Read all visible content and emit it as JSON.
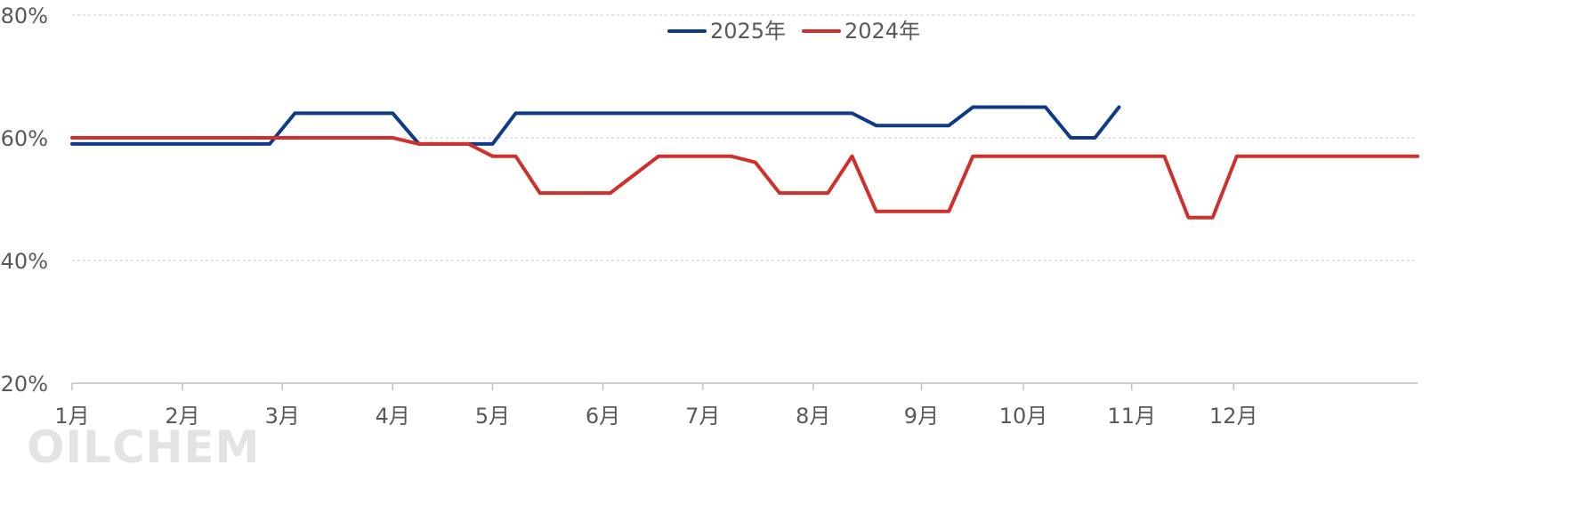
{
  "watermark": "OILCHEM",
  "chart_data": {
    "type": "line",
    "title": "",
    "xlabel": "",
    "ylabel": "",
    "ylim": [
      20,
      80
    ],
    "y_ticks": [
      "20%",
      "40%",
      "60%",
      "80%"
    ],
    "y_tick_values": [
      20,
      40,
      60,
      80
    ],
    "x_range": [
      1,
      13.8
    ],
    "months": [
      "1月",
      "2月",
      "3月",
      "4月",
      "5月",
      "6月",
      "7月",
      "8月",
      "9月",
      "10月",
      "11月",
      "12月"
    ],
    "grid": "horizontal dashed",
    "legend_position": "top-center",
    "series": [
      {
        "name": "2025年",
        "color": "#0e3a8a",
        "points": [
          [
            1.0,
            59
          ],
          [
            2.88,
            59
          ],
          [
            3.12,
            64
          ],
          [
            4.05,
            64
          ],
          [
            4.3,
            59
          ],
          [
            5.0,
            59
          ],
          [
            5.22,
            64
          ],
          [
            8.42,
            64
          ],
          [
            8.65,
            62
          ],
          [
            9.34,
            62
          ],
          [
            9.57,
            65
          ],
          [
            10.26,
            65
          ],
          [
            10.5,
            60
          ],
          [
            10.73,
            60
          ],
          [
            10.96,
            65
          ]
        ]
      },
      {
        "name": "2024年",
        "color": "#d0302b",
        "points": [
          [
            1.0,
            60
          ],
          [
            4.05,
            60
          ],
          [
            4.3,
            59
          ],
          [
            4.77,
            59
          ],
          [
            5.0,
            57
          ],
          [
            5.22,
            57
          ],
          [
            5.45,
            51
          ],
          [
            6.12,
            51
          ],
          [
            6.35,
            54
          ],
          [
            6.58,
            57
          ],
          [
            7.27,
            57
          ],
          [
            7.5,
            56
          ],
          [
            7.73,
            51
          ],
          [
            8.19,
            51
          ],
          [
            8.42,
            57
          ],
          [
            8.65,
            48
          ],
          [
            9.34,
            48
          ],
          [
            9.57,
            57
          ],
          [
            11.39,
            57
          ],
          [
            11.62,
            47
          ],
          [
            11.85,
            47
          ],
          [
            12.08,
            57
          ],
          [
            13.8,
            57
          ]
        ]
      }
    ]
  }
}
